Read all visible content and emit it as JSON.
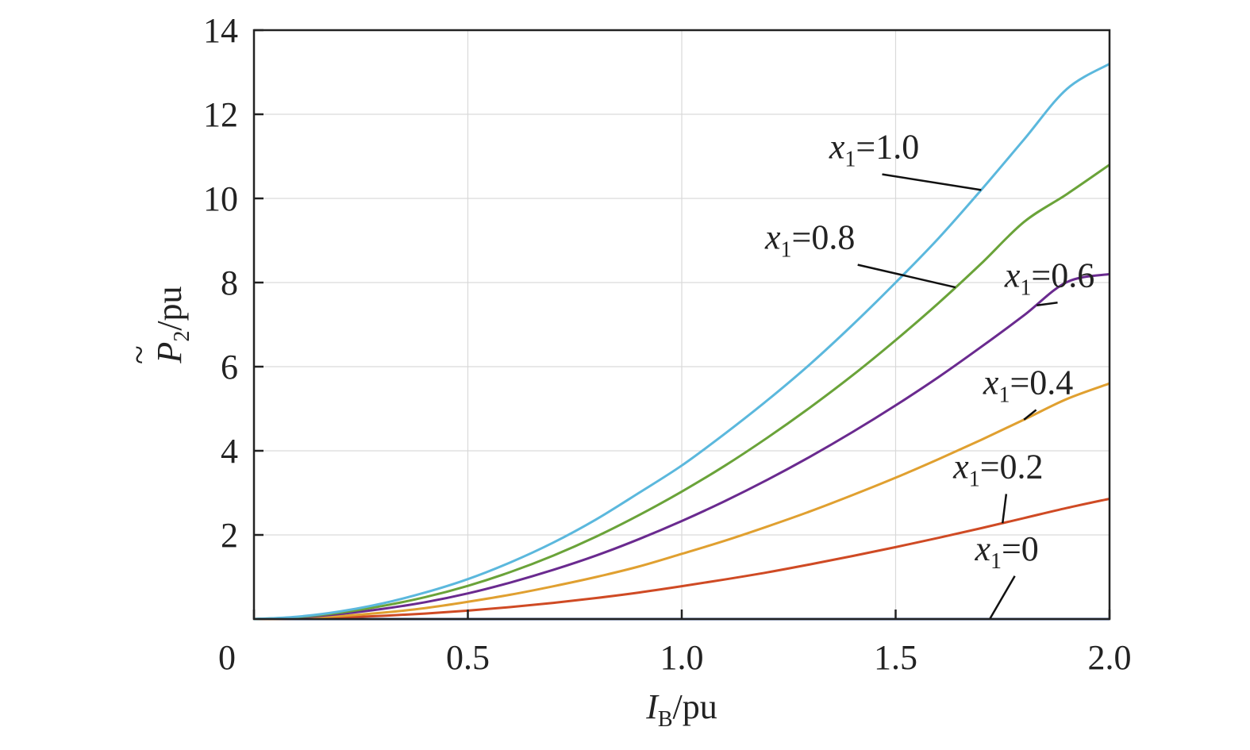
{
  "chart_data": {
    "type": "line",
    "x_domain": [
      0,
      2.0
    ],
    "ylim": [
      0,
      14
    ],
    "grid": true,
    "x_ticks": [
      {
        "value": 0,
        "label": "0"
      },
      {
        "value": 0.5,
        "label": "0.5"
      },
      {
        "value": 1.0,
        "label": "1.0"
      },
      {
        "value": 1.5,
        "label": "1.5"
      },
      {
        "value": 2.0,
        "label": "2.0"
      }
    ],
    "y_ticks": [
      {
        "value": 2,
        "label": "2"
      },
      {
        "value": 4,
        "label": "4"
      },
      {
        "value": 6,
        "label": "6"
      },
      {
        "value": 8,
        "label": "8"
      },
      {
        "value": 10,
        "label": "10"
      },
      {
        "value": 12,
        "label": "12"
      },
      {
        "value": 14,
        "label": "14"
      }
    ],
    "xlabel": {
      "symbol": "I",
      "subscript": "B",
      "unit": "/pu"
    },
    "ylabel": {
      "symbol": "P",
      "subscript": "2",
      "unit": "/pu",
      "accent": "~"
    },
    "x": [
      0,
      0.1,
      0.2,
      0.3,
      0.4,
      0.5,
      0.6,
      0.7,
      0.8,
      0.9,
      1.0,
      1.1,
      1.2,
      1.3,
      1.4,
      1.5,
      1.6,
      1.7,
      1.8,
      1.9,
      2.0
    ],
    "series": [
      {
        "name": "x1=0",
        "param": "0",
        "color": "#3a63b8",
        "label_x": 1.76,
        "label_y": 1.4,
        "anchor_x": 1.72,
        "values": [
          0,
          0,
          0,
          0,
          0,
          0,
          0,
          0,
          0,
          0,
          0,
          0,
          0,
          0,
          0,
          0,
          0,
          0,
          0,
          0,
          0
        ]
      },
      {
        "name": "x1=0.2",
        "param": "0.2",
        "color": "#cf4a24",
        "label_x": 1.74,
        "label_y": 3.35,
        "anchor_x": 1.75,
        "values": [
          0,
          0.01,
          0.035,
          0.075,
          0.13,
          0.2,
          0.285,
          0.385,
          0.5,
          0.63,
          0.78,
          0.94,
          1.11,
          1.3,
          1.5,
          1.71,
          1.93,
          2.16,
          2.4,
          2.64,
          2.86
        ]
      },
      {
        "name": "x1=0.4",
        "param": "0.4",
        "color": "#e0a030",
        "label_x": 1.81,
        "label_y": 5.35,
        "anchor_x": 1.8,
        "values": [
          0,
          0.02,
          0.07,
          0.15,
          0.26,
          0.41,
          0.58,
          0.78,
          1.0,
          1.25,
          1.55,
          1.86,
          2.2,
          2.56,
          2.95,
          3.36,
          3.8,
          4.26,
          4.74,
          5.23,
          5.6
        ]
      },
      {
        "name": "x1=0.6",
        "param": "0.6",
        "color": "#6a2a8f",
        "label_x": 1.86,
        "label_y": 7.9,
        "anchor_x": 1.83,
        "values": [
          0,
          0.035,
          0.12,
          0.24,
          0.4,
          0.61,
          0.87,
          1.17,
          1.51,
          1.9,
          2.33,
          2.8,
          3.31,
          3.86,
          4.45,
          5.08,
          5.75,
          6.47,
          7.22,
          8.01,
          8.2
        ]
      },
      {
        "name": "x1=0.8",
        "param": "0.8",
        "color": "#6aa339",
        "label_x": 1.3,
        "label_y": 8.8,
        "anchor_x": 1.64,
        "values": [
          0,
          0.045,
          0.15,
          0.31,
          0.52,
          0.79,
          1.12,
          1.51,
          1.96,
          2.47,
          3.03,
          3.64,
          4.31,
          5.03,
          5.8,
          6.63,
          7.51,
          8.45,
          9.44,
          10.1,
          10.8
        ]
      },
      {
        "name": "x1=1.0",
        "param": "1.0",
        "color": "#5bb8dd",
        "label_x": 1.45,
        "label_y": 10.95,
        "anchor_x": 1.7,
        "values": [
          0,
          0.055,
          0.18,
          0.37,
          0.63,
          0.95,
          1.35,
          1.82,
          2.37,
          3.0,
          3.65,
          4.4,
          5.2,
          6.06,
          7.0,
          8.0,
          9.05,
          10.2,
          11.4,
          12.6,
          13.2
        ]
      }
    ]
  }
}
